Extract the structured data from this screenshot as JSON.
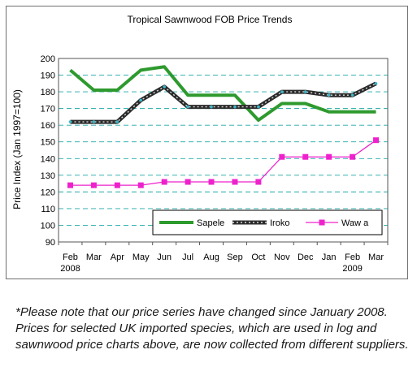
{
  "chart_data": {
    "type": "line",
    "title": "Tropical Sawnwood FOB Price Trends",
    "ylabel": "Price Index (Jan 1997=100)",
    "xlabel": "",
    "ylim": [
      90,
      200
    ],
    "yticks": [
      90,
      100,
      110,
      120,
      130,
      140,
      150,
      160,
      170,
      180,
      190,
      200
    ],
    "categories": [
      "Feb",
      "Mar",
      "Apr",
      "May",
      "Jun",
      "Jul",
      "Aug",
      "Sep",
      "Oct",
      "Nov",
      "Dec",
      "Jan",
      "Feb",
      "Mar"
    ],
    "year_labels": [
      {
        "category_index": 0,
        "label": "2008"
      },
      {
        "category_index": 12,
        "label": "2009"
      }
    ],
    "grid": "horizontal dashed",
    "legend_position": "bottom-right",
    "series": [
      {
        "name": "Sapele",
        "color": "#2e9a2e",
        "marker": "none",
        "values": [
          193,
          181,
          181,
          193,
          195,
          178,
          178,
          178,
          163,
          173,
          173,
          168,
          168,
          168
        ]
      },
      {
        "name": "Iroko",
        "color": "#2b2b2b",
        "marker": "dot",
        "values": [
          162,
          162,
          162,
          175,
          183,
          171,
          171,
          171,
          171,
          180,
          180,
          178,
          178,
          185
        ]
      },
      {
        "name": "Wawa",
        "display_name": "Waw a",
        "color": "#ee22cc",
        "marker": "square",
        "values": [
          124,
          124,
          124,
          124,
          126,
          126,
          126,
          126,
          126,
          141,
          141,
          141,
          141,
          151
        ]
      }
    ]
  },
  "footnote": "*Please note that our price series have changed since January 2008. Prices for selected UK imported species, which are used in log and sawnwood price charts above, are now collected from different suppliers."
}
